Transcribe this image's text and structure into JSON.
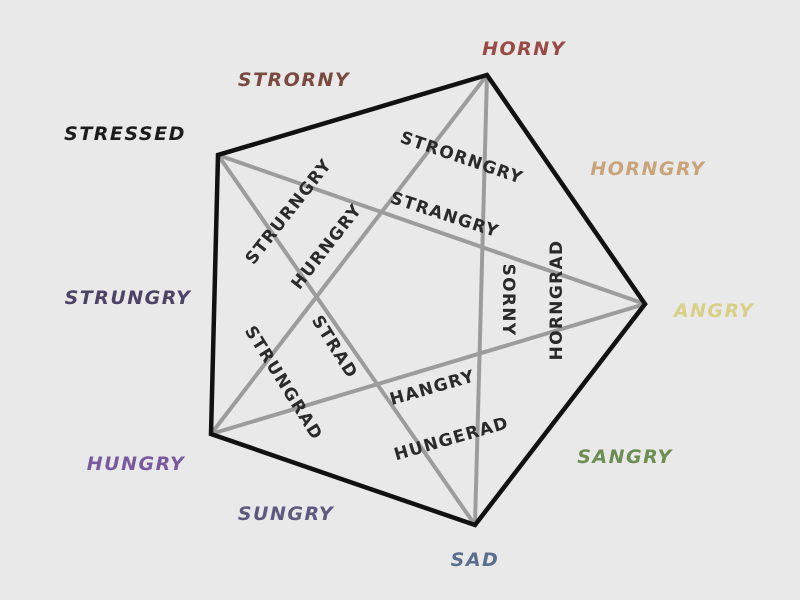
{
  "colors": {
    "background": "#e9e9e9",
    "pentagon_edge": "#111111",
    "star_line": "#9c9c9c"
  },
  "vertices": {
    "horny": {
      "label": "HORNY",
      "color": "#9a4a45"
    },
    "stressed": {
      "label": "STRESSED",
      "color": "#1c1c1c"
    },
    "angry": {
      "label": "ANGRY",
      "color": "#d9cf86"
    },
    "hungry": {
      "label": "HUNGRY",
      "color": "#7a5a9e"
    },
    "sad": {
      "label": "SAD",
      "color": "#5a6f8e"
    }
  },
  "edge_blends": {
    "strorny": {
      "label": "STRORNY",
      "color": "#7a4a40"
    },
    "horngry": {
      "label": "HORNGRY",
      "color": "#c9a47a"
    },
    "sangry": {
      "label": "SANGRY",
      "color": "#6c8e52"
    },
    "sungry": {
      "label": "SUNGRY",
      "color": "#5e5a7e"
    },
    "strungry": {
      "label": "STRUNGRY",
      "color": "#4c4466"
    }
  },
  "inner_blends": {
    "strorngry": "STRORNGRY",
    "strangry": "STRANGRY",
    "strurngry": "STRURNGRY",
    "hurngry": "HURNGRY",
    "horngrad": "HORNGRAD",
    "sorny": "SORNY",
    "strungrad": "STRUNGRAD",
    "strad": "STRAD",
    "hangry": "HANGRY",
    "hungerad": "HUNGERAD"
  }
}
